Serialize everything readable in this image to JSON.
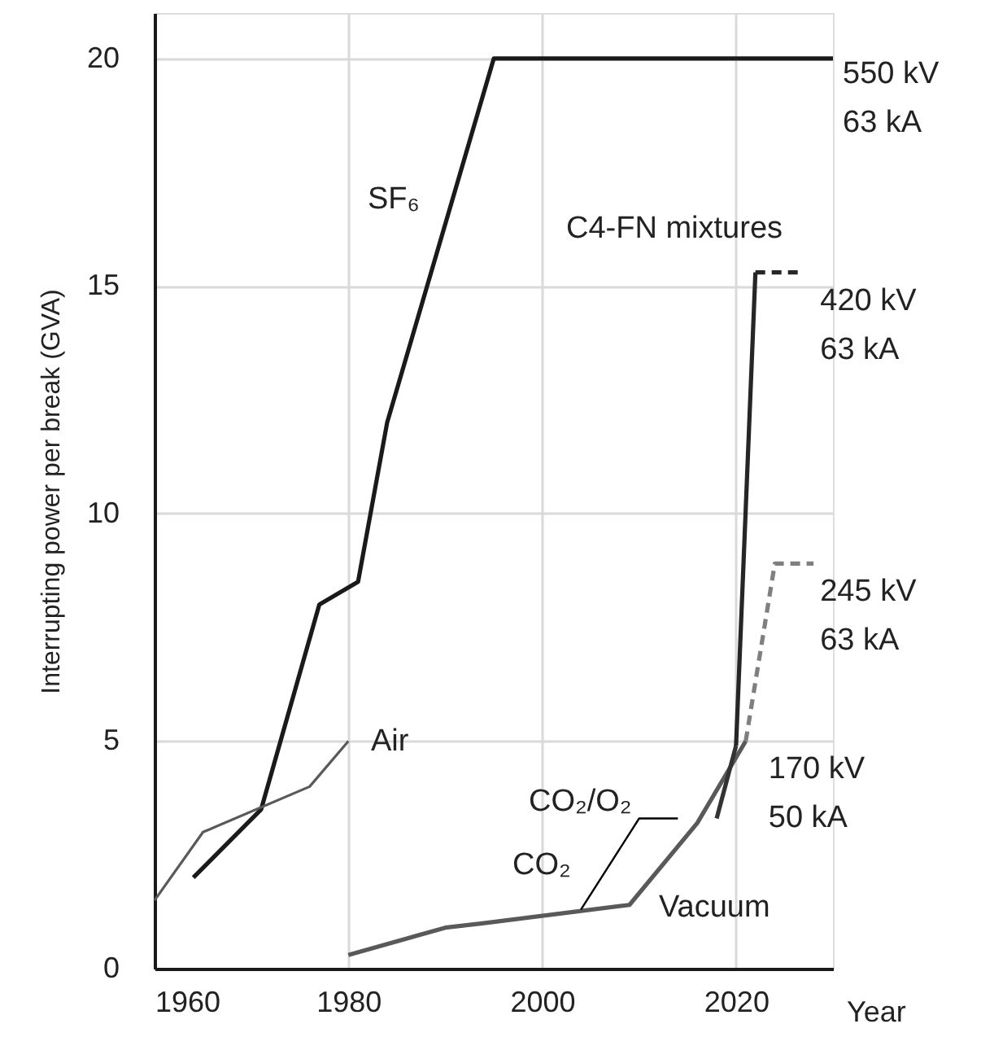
{
  "chart_data": {
    "type": "line",
    "xlabel": "Year",
    "ylabel": "Interrupting power per break (GVA)",
    "xlim": [
      1960,
      2030
    ],
    "ylim": [
      0,
      21
    ],
    "xticks": [
      1960,
      1980,
      2000,
      2020
    ],
    "yticks": [
      0,
      5,
      10,
      15,
      20
    ],
    "grid": true,
    "marker": "none",
    "series": [
      {
        "color": "#1a1a1a",
        "x": [
          1964,
          1971,
          1977,
          1981,
          1984,
          1995,
          2030
        ],
        "values": [
          2,
          3.5,
          8,
          8.5,
          12,
          20,
          20
        ],
        "line_style": "solid"
      },
      {
        "color": "#595959",
        "x": [
          1960,
          1965,
          1976,
          1980
        ],
        "values": [
          1.5,
          3,
          4,
          5
        ],
        "line_style": "solid"
      },
      {
        "color": "#595959",
        "x": [
          1980,
          1990,
          1994,
          2009,
          2016,
          2021
        ],
        "values": [
          0.3,
          0.9,
          1,
          1.4,
          3.2,
          5
        ],
        "line_style": "solid"
      },
      {
        "color": "#333333",
        "x": [
          2018,
          2020
        ],
        "values": [
          3.3,
          4.9
        ],
        "line_style": "solid"
      },
      {
        "color": "#262626",
        "x": [
          2020,
          2022
        ],
        "values": [
          4.9,
          15.3
        ],
        "line_style": "solid"
      },
      {
        "color": "#262626",
        "x": [
          2022,
          2027
        ],
        "values": [
          15.3,
          15.3
        ],
        "line_style": "dashed"
      },
      {
        "color": "#7f7f7f",
        "x": [
          2021,
          2024,
          2028
        ],
        "values": [
          5,
          8.9,
          8.9
        ],
        "line_style": "dashed"
      },
      {
        "color": "#000000",
        "x": [
          2004,
          2010,
          2014
        ],
        "values": [
          1.3,
          3.3,
          3.3
        ],
        "line_style": "solid"
      }
    ],
    "annotations": [
      "SF₆",
      "Air",
      "Vacuum",
      "CO₂",
      "CO₂/O₂",
      "C4-FN mixtures",
      {
        "text": "550 kV\n63 kA",
        "x": 2030,
        "y": 20
      },
      {
        "text": "420 kV\n63 kA",
        "x": 2027,
        "y": 15.3
      },
      {
        "text": "245 kV\n63 kA",
        "x": 2028,
        "y": 8.9
      },
      {
        "text": "170 kV\n50 kA",
        "x": 2021,
        "y": 5
      }
    ]
  }
}
